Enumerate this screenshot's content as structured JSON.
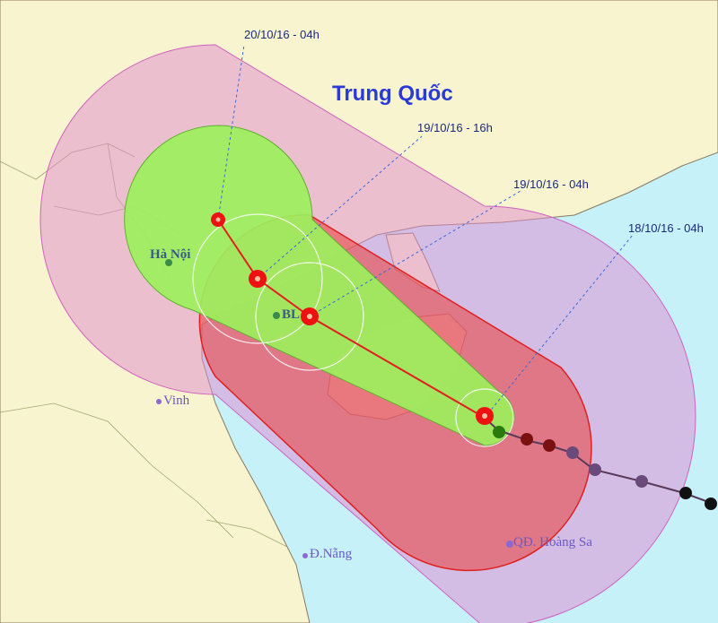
{
  "map": {
    "country_label": "Trung Quốc",
    "forecast_times": [
      "20/10/16 - 04h",
      "19/10/16 - 16h",
      "19/10/16 - 04h",
      "18/10/16 - 04h"
    ],
    "places": {
      "hanoi": "Hà Nội",
      "bl": "BL",
      "vinh": "Vinh",
      "danang": "Đ.Nẵng",
      "hoangsa": "QĐ. Hoàng Sa"
    },
    "colors": {
      "sea": "#c6f1f9",
      "land": "#f8f4cf",
      "risk_zone": "#e08ad0",
      "strong_wind_zone": "#e84848",
      "track_cone": "#9cf05c",
      "forecast_track": "#e02020",
      "storm_icon": "#ee1111",
      "past_track": "#6a4a6a"
    }
  }
}
